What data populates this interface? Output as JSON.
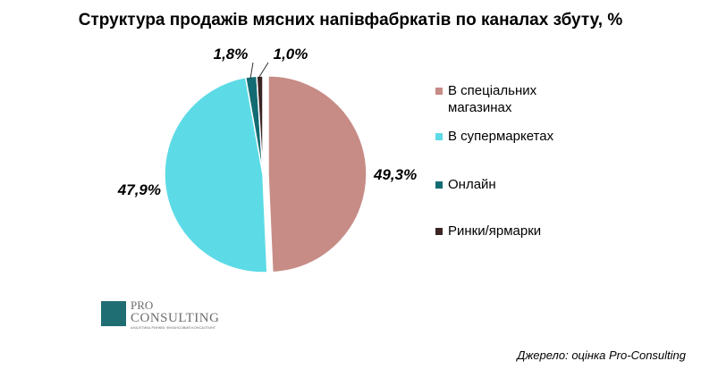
{
  "chart_data": {
    "type": "pie",
    "title": "Структура продажів мясних напівфабркатів по каналах збуту, %",
    "slices": [
      {
        "label": "В спеціальних магазинах",
        "value": 49.3,
        "display": "49,3%",
        "color": "#c78c86"
      },
      {
        "label": "В супермаркетах",
        "value": 47.9,
        "display": "47,9%",
        "color": "#5cdbe6"
      },
      {
        "label": "Онлайн",
        "value": 1.8,
        "display": "1,8%",
        "color": "#126b72"
      },
      {
        "label": "Ринки/ярмарки",
        "value": 1.0,
        "display": "1,0%",
        "color": "#3b2424"
      }
    ],
    "legend_position": "right",
    "start": "12 o'clock",
    "direction": "clockwise"
  },
  "logo": {
    "pro": "PRO",
    "consulting": "CONSULTING",
    "tagline": "АНАЛІТИКА РИНКІВ, ФІНАНСОВИЙ КОНСАЛТИНГ"
  },
  "source": "Джерело: оцінка Pro-Consulting"
}
